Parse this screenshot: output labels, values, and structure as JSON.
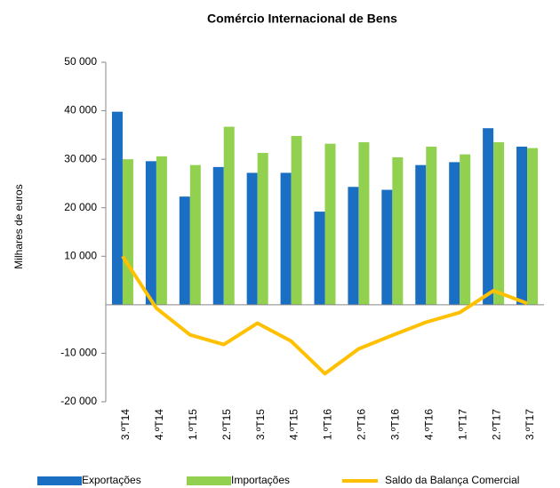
{
  "chart_data": {
    "type": "bar+line",
    "title": "Comércio Internacional de Bens",
    "y_label": "Milhares de euros",
    "categories": [
      "3.ºT14",
      "4.ºT14",
      "1.ºT15",
      "2.ºT15",
      "3.ºT15",
      "4.ºT15",
      "1.ºT16",
      "2.ºT16",
      "3.ºT16",
      "4.ºT16",
      "1.ºT17",
      "2.ºT17",
      "3.ºT17"
    ],
    "series": [
      {
        "name": "Exportações",
        "type": "bar",
        "color": "#1b6fc2",
        "values": [
          39800,
          29600,
          22300,
          28400,
          27200,
          27200,
          19200,
          24300,
          23700,
          28800,
          29400,
          36400,
          32600
        ]
      },
      {
        "name": "Importações",
        "type": "bar",
        "color": "#92d050",
        "values": [
          30000,
          30600,
          28800,
          36700,
          31300,
          34800,
          33200,
          33500,
          30400,
          32600,
          31000,
          33500,
          32300
        ]
      },
      {
        "name": "Saldo da Balança Comercial",
        "type": "line",
        "color": "#ffc000",
        "values": [
          10000,
          -700,
          -6200,
          -8200,
          -3800,
          -7500,
          -14200,
          -9100,
          -6300,
          -3600,
          -1600,
          2900,
          300
        ]
      }
    ],
    "ylim": [
      -20000,
      50000
    ],
    "yticks": [
      {
        "value": 50000,
        "label": "50 000"
      },
      {
        "value": 40000,
        "label": "40 000"
      },
      {
        "value": 30000,
        "label": "30 000"
      },
      {
        "value": 20000,
        "label": "20 000"
      },
      {
        "value": 10000,
        "label": "10 000"
      },
      {
        "value": -10000,
        "label": "-10 000"
      },
      {
        "value": -20000,
        "label": "-20 000"
      }
    ],
    "legend": "bottom"
  }
}
